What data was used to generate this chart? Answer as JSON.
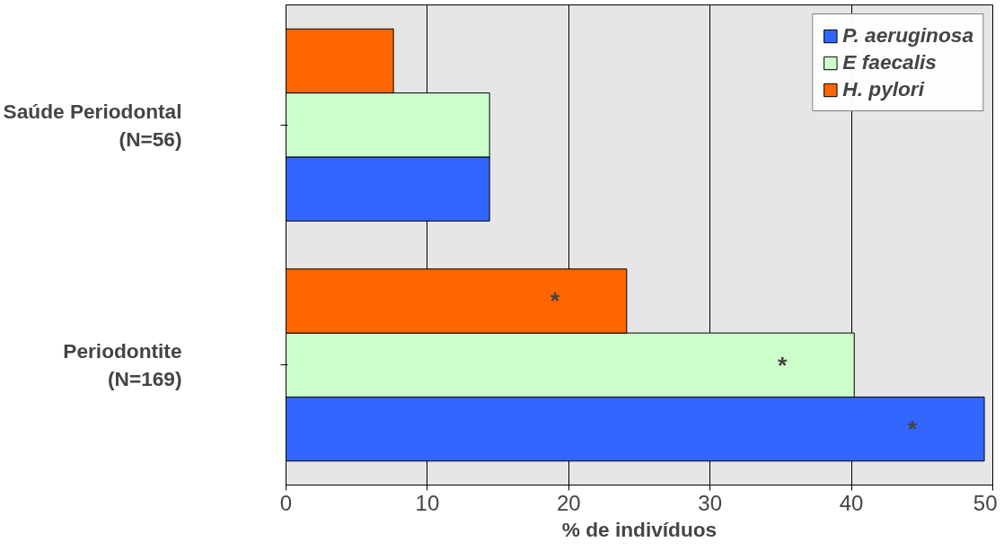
{
  "chart_data": {
    "type": "bar",
    "orientation": "horizontal",
    "categories": [
      "Saúde Periodontal\n(N=56)",
      "Periodontite\n(N=169)"
    ],
    "series": [
      {
        "name": "P. aeruginosa",
        "color": "#3366ff",
        "values": [
          14.4,
          49.4
        ]
      },
      {
        "name": "E faecalis",
        "color": "#ccffcc",
        "values": [
          14.4,
          40.2
        ]
      },
      {
        "name": "H. pylori",
        "color": "#ff6600",
        "values": [
          7.6,
          24.1
        ]
      }
    ],
    "xlabel": "% de indivíduos",
    "xlim": [
      0,
      50
    ],
    "xticks": [
      0,
      10,
      20,
      30,
      40,
      50
    ],
    "grid": "x",
    "legend": "top right",
    "annotations": [
      "*",
      "*",
      "*"
    ]
  }
}
